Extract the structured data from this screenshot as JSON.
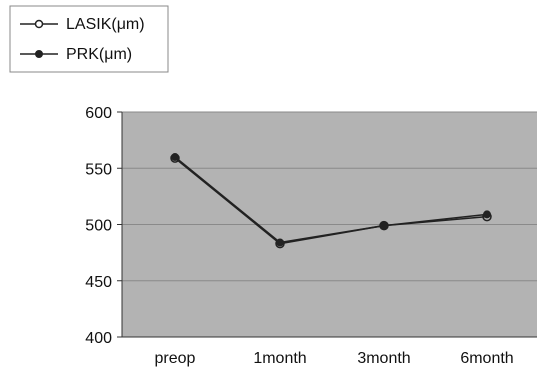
{
  "chart_data": {
    "type": "line",
    "categories": [
      "preop",
      "1month",
      "3month",
      "6month"
    ],
    "series": [
      {
        "name": "LASIK(μm)",
        "marker": "open-circle",
        "color": "#222222",
        "values": [
          559,
          483,
          499,
          507
        ]
      },
      {
        "name": "PRK(μm)",
        "marker": "filled-circle",
        "color": "#222222",
        "values": [
          560,
          484,
          499,
          509
        ]
      }
    ],
    "ylim": [
      400,
      600
    ],
    "yticks": [
      400,
      450,
      500,
      550,
      600
    ],
    "grid": true,
    "legend_position": "top-left",
    "colors": {
      "plot_background": "#b3b3b3",
      "gridline": "#8a8a8a",
      "line": "#222222"
    }
  }
}
